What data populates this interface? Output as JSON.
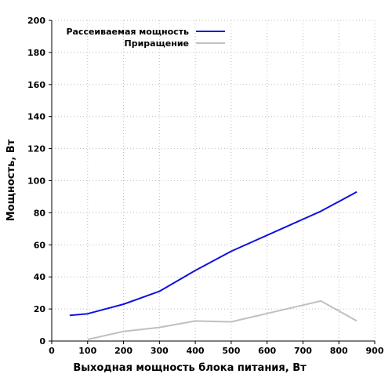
{
  "chart_data": {
    "type": "line",
    "xlabel": "Выходная мощность блока питания, Вт",
    "ylabel": "Мощность, Вт",
    "xlim": [
      0,
      900
    ],
    "ylim": [
      0,
      200
    ],
    "x_ticks": [
      0,
      100,
      200,
      300,
      400,
      500,
      600,
      700,
      800,
      900
    ],
    "y_ticks": [
      0,
      20,
      40,
      60,
      80,
      100,
      120,
      140,
      160,
      180,
      200
    ],
    "grid": true,
    "legend_position": "top-left",
    "series": [
      {
        "name": "Рассеиваемая мощность",
        "color": "#1010e0",
        "points": [
          [
            50,
            16
          ],
          [
            100,
            17
          ],
          [
            200,
            23
          ],
          [
            300,
            31
          ],
          [
            400,
            44
          ],
          [
            500,
            56
          ],
          [
            750,
            81
          ],
          [
            850,
            93
          ]
        ]
      },
      {
        "name": "Приращение",
        "color": "#c0c0c0",
        "points": [
          [
            100,
            1
          ],
          [
            200,
            6
          ],
          [
            300,
            8.5
          ],
          [
            400,
            12.5
          ],
          [
            500,
            12
          ],
          [
            750,
            25
          ],
          [
            850,
            12.5
          ]
        ]
      }
    ]
  }
}
